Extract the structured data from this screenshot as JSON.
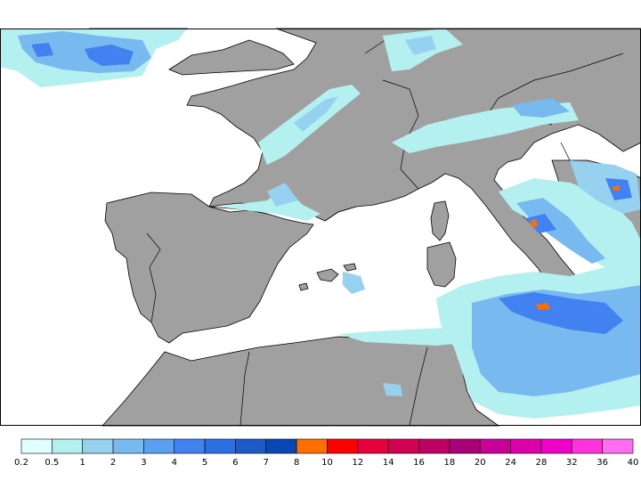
{
  "colors": {
    "land": "#a0a0a0",
    "sea": "#ffffff",
    "border": "#000000",
    "frame": "#000000"
  },
  "legend": {
    "colors": [
      "#e2ffff",
      "#b4f0f0",
      "#96d2f0",
      "#78b9f0",
      "#5aa0f0",
      "#4182f0",
      "#2d6ee1",
      "#1e5ac8",
      "#0a46b4",
      "#ff6e00",
      "#ff0000",
      "#e6003c",
      "#d20050",
      "#be0064",
      "#aa0078",
      "#c80096",
      "#dc00aa",
      "#f000c8",
      "#ff32dc",
      "#ff6ef0"
    ],
    "labels": [
      "0.2",
      "0.5",
      "1",
      "2",
      "3",
      "4",
      "5",
      "6",
      "7",
      "8",
      "10",
      "12",
      "14",
      "16",
      "18",
      "20",
      "24",
      "28",
      "32",
      "36",
      "40"
    ]
  }
}
